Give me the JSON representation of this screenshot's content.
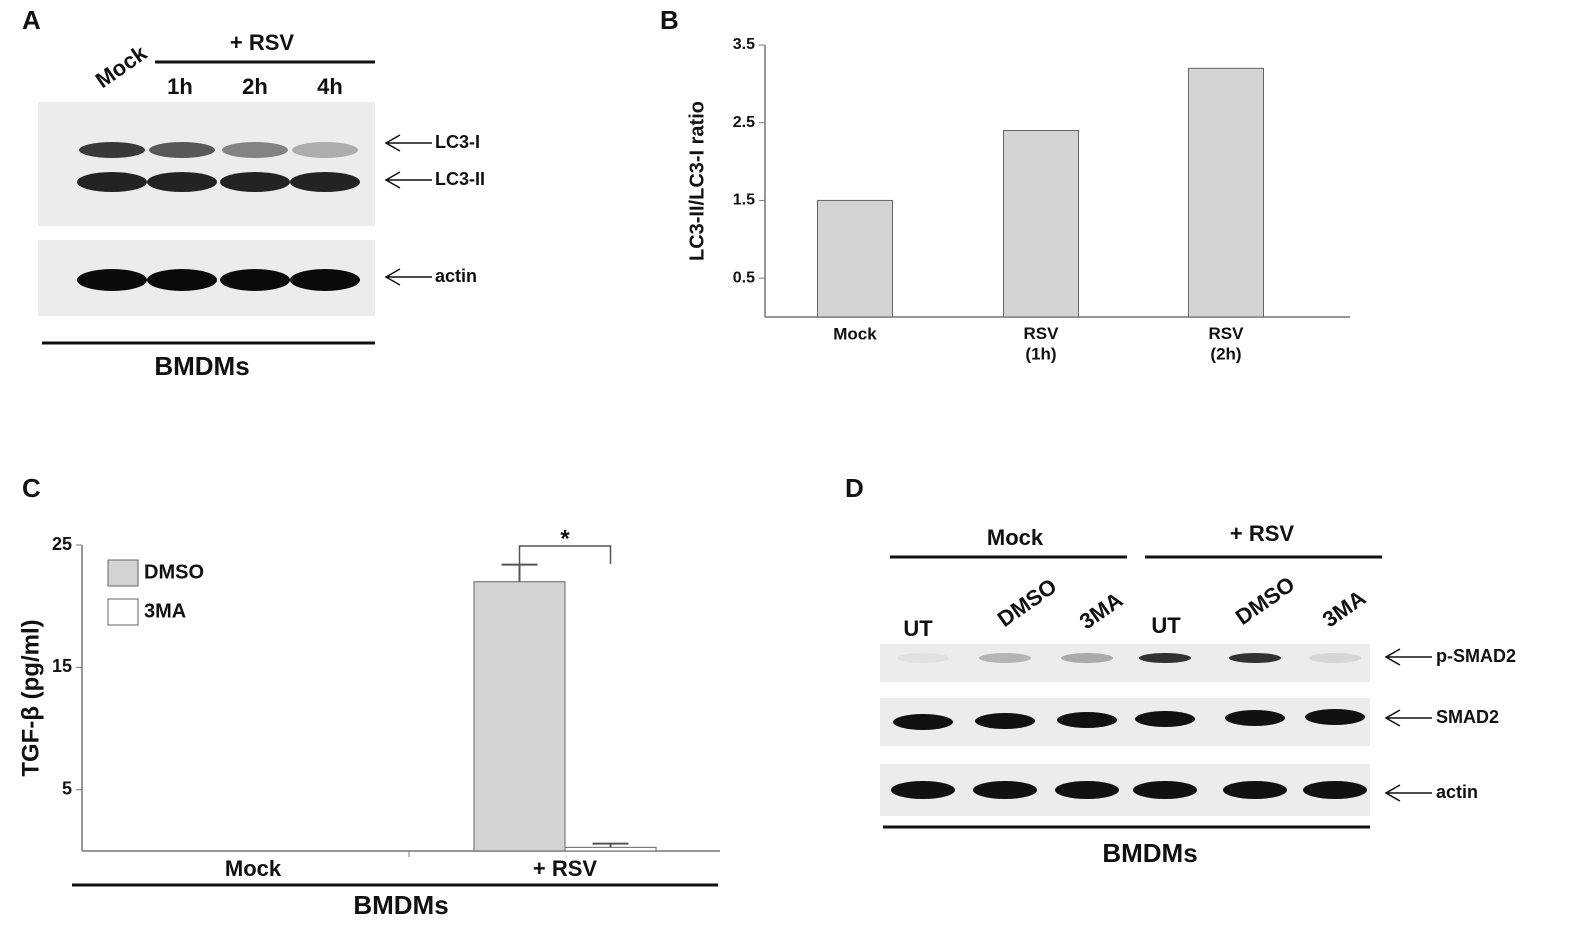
{
  "panel_labels": [
    "A",
    "B",
    "C",
    "D"
  ],
  "blot_a": {
    "group": "+ RSV",
    "lanes": [
      "Mock",
      "1h",
      "2h",
      "4h"
    ],
    "bands": [
      "LC3-I",
      "LC3-II",
      "actin"
    ],
    "footer": "BMDMs"
  },
  "blot_d": {
    "groups": [
      "Mock",
      "+ RSV"
    ],
    "lanes": [
      "UT",
      "DMSO",
      "3MA",
      "UT",
      "DMSO",
      "3MA"
    ],
    "bands": [
      "p-SMAD2",
      "SMAD2",
      "actin"
    ],
    "footer": "BMDMs"
  },
  "chart_data": [
    {
      "type": "bar",
      "y_label": "LC3-II/LC3-I ratio",
      "categories": [
        "Mock",
        "RSV\n(1h)",
        "RSV\n(2h)"
      ],
      "values": [
        1.5,
        2.4,
        3.2
      ],
      "color": "#d3d3d3",
      "ylim": [
        0,
        3.5
      ],
      "yticks": [
        0.5,
        1.5,
        2.5,
        3.5
      ]
    },
    {
      "type": "bar",
      "y_label": "TGF-β (pg/ml)",
      "x_label": "BMDMs",
      "categories": [
        "Mock",
        "+ RSV"
      ],
      "series": [
        {
          "name": "DMSO",
          "color": "#d3d3d3",
          "values": [
            0,
            22.0
          ],
          "errors": [
            0,
            1.4
          ]
        },
        {
          "name": "3MA",
          "color": "#ffffff",
          "values": [
            0,
            0.3
          ],
          "errors": [
            0,
            0.3
          ]
        }
      ],
      "ylim": [
        0,
        25
      ],
      "yticks": [
        5,
        15,
        25
      ],
      "legend": "upper left",
      "annotation": "*"
    }
  ]
}
